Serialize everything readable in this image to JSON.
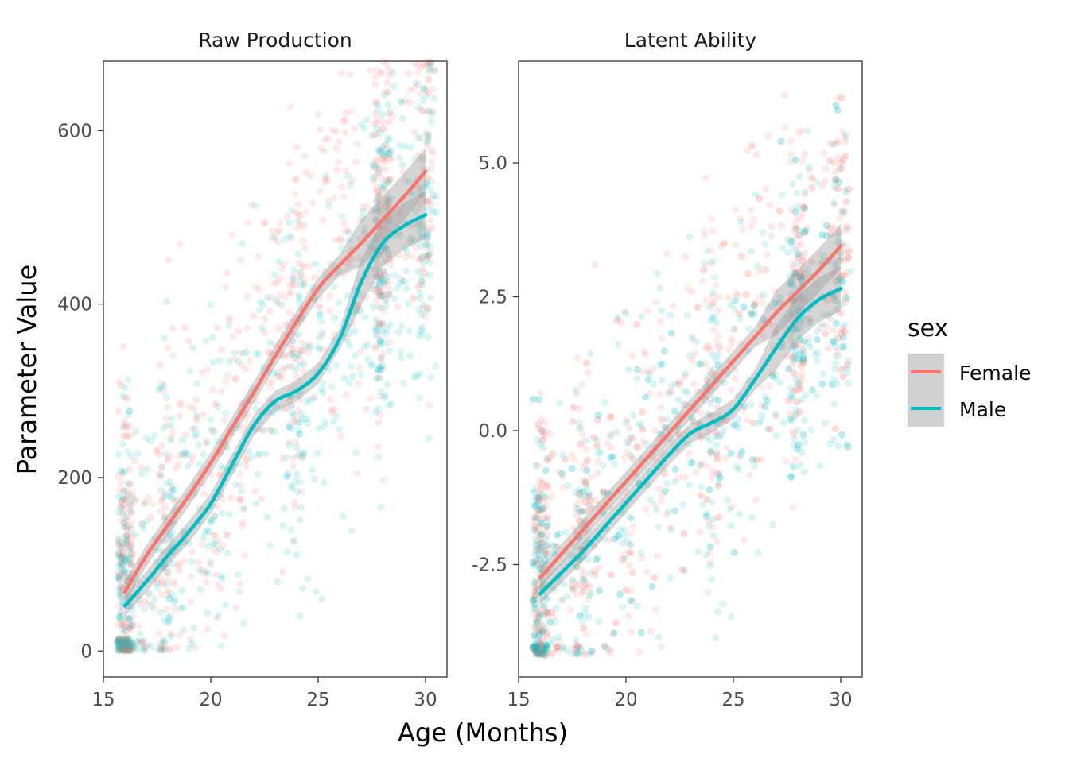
{
  "chart_data": {
    "type": "scatter",
    "xlabel": "Age (Months)",
    "ylabel": "Parameter Value",
    "grid": false,
    "legend": {
      "title": "sex",
      "placement": "right",
      "entries": [
        {
          "label": "Female",
          "color": "#F8766D"
        },
        {
          "label": "Male",
          "color": "#00BFC4"
        }
      ]
    },
    "colors": {
      "Female": "#F8766D",
      "Male": "#00BFC4",
      "band": "#999999"
    },
    "point_alpha": 0.15,
    "panels": [
      {
        "title": "Raw Production",
        "xlim": [
          15,
          31
        ],
        "ylim": [
          -30,
          680
        ],
        "x_ticks": [
          15,
          20,
          25,
          30
        ],
        "x_tick_labels": [
          "15",
          "20",
          "25",
          "30"
        ],
        "y_ticks": [
          0,
          200,
          400,
          600
        ],
        "y_tick_labels": [
          "0",
          "200",
          "400",
          "600"
        ],
        "point_y_range": [
          0,
          680
        ],
        "series": [
          {
            "name": "Female",
            "x": [
              16,
              17,
              18,
              19,
              20,
              21,
              22,
              23,
              24,
              25,
              26,
              27,
              28,
              29,
              30
            ],
            "y": [
              68,
              110,
              145,
              180,
              217,
              258,
              298,
              340,
              380,
              418,
              445,
              470,
              497,
              524,
              553
            ]
          },
          {
            "name": "Male",
            "x": [
              16,
              17,
              18,
              19,
              20,
              21,
              22,
              23,
              24,
              25,
              26,
              27,
              28,
              29,
              30
            ],
            "y": [
              52,
              80,
              110,
              138,
              170,
              215,
              260,
              288,
              300,
              320,
              360,
              425,
              470,
              490,
              503
            ]
          }
        ]
      },
      {
        "title": "Latent Ability",
        "xlim": [
          15,
          31
        ],
        "ylim": [
          -4.6,
          6.9
        ],
        "x_ticks": [
          15,
          20,
          25,
          30
        ],
        "x_tick_labels": [
          "15",
          "20",
          "25",
          "30"
        ],
        "y_ticks": [
          -2.5,
          0,
          2.5,
          5
        ],
        "y_tick_labels": [
          "-2.5",
          "0.0",
          "2.5",
          "5.0"
        ],
        "point_y_range": [
          -4.2,
          6.3
        ],
        "series": [
          {
            "name": "Female",
            "x": [
              16,
              17,
              18,
              19,
              20,
              21,
              22,
              23,
              24,
              25,
              26,
              27,
              28,
              29,
              30
            ],
            "y": [
              -2.75,
              -2.3,
              -1.85,
              -1.4,
              -0.95,
              -0.5,
              -0.05,
              0.4,
              0.85,
              1.3,
              1.75,
              2.2,
              2.6,
              3.0,
              3.45
            ]
          },
          {
            "name": "Male",
            "x": [
              16,
              17,
              18,
              19,
              20,
              21,
              22,
              23,
              24,
              25,
              26,
              27,
              28,
              29,
              30
            ],
            "y": [
              -3.05,
              -2.65,
              -2.25,
              -1.8,
              -1.35,
              -0.9,
              -0.45,
              -0.05,
              0.15,
              0.4,
              0.95,
              1.55,
              2.1,
              2.45,
              2.65
            ]
          }
        ]
      }
    ]
  }
}
